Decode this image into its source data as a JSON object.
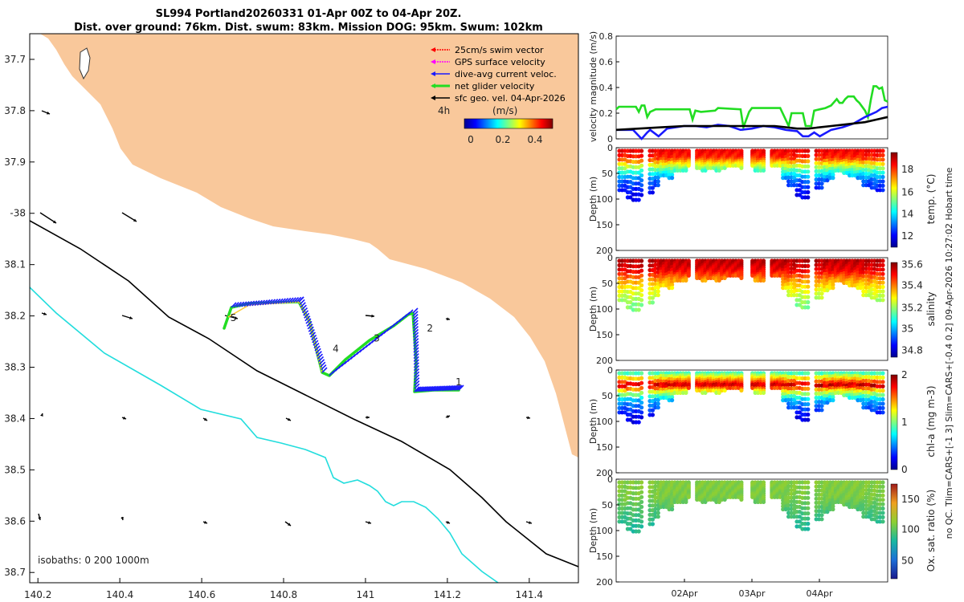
{
  "header": {
    "title_line1": "SL994 Portland20260331 01-Apr 00Z to 04-Apr 20Z.",
    "title_line2": "Dist. over ground: 76km. Dist. swum: 83km. Mission DOG: 95km. Swum: 102km"
  },
  "colors": {
    "land": "#f9c89b",
    "sea": "#ffffff",
    "isobath_200": "#000000",
    "isobath_1000": "#22dddd",
    "swim": "#ff0000",
    "gps": "#ff00ff",
    "current": "#1a1aff",
    "net": "#22dd22",
    "geo": "#000000"
  },
  "map": {
    "xlim": [
      140.18,
      141.52
    ],
    "ylim": [
      -38.72,
      -37.65
    ],
    "x_ticks": [
      {
        "v": 140.2,
        "label": "140.2"
      },
      {
        "v": 140.4,
        "label": "140.4"
      },
      {
        "v": 140.6,
        "label": "140.6"
      },
      {
        "v": 140.8,
        "label": "140.8"
      },
      {
        "v": 141.0,
        "label": "141"
      },
      {
        "v": 141.2,
        "label": "141.2"
      },
      {
        "v": 141.4,
        "label": "141.4"
      }
    ],
    "y_ticks": [
      {
        "v": -37.7,
        "label": "37.7"
      },
      {
        "v": -37.8,
        "label": "37.8"
      },
      {
        "v": -37.9,
        "label": "37.9"
      },
      {
        "v": -38.0,
        "label": "-38"
      },
      {
        "v": -38.1,
        "label": "38.1"
      },
      {
        "v": -38.2,
        "label": "38.2"
      },
      {
        "v": -38.3,
        "label": "38.3"
      },
      {
        "v": -38.4,
        "label": "38.4"
      },
      {
        "v": -38.5,
        "label": "38.5"
      },
      {
        "v": -38.6,
        "label": "38.6"
      },
      {
        "v": -38.7,
        "label": "38.7"
      }
    ],
    "isobath_label": "isobaths: 0   200  1000m",
    "legend": [
      {
        "label": "25cm/s swim vector",
        "color_key": "swim"
      },
      {
        "label": "GPS surface velocity",
        "color_key": "gps"
      },
      {
        "label": "dive-avg current veloc.",
        "color_key": "current"
      },
      {
        "label": "net glider velocity",
        "color_key": "net"
      },
      {
        "label": "sfc geo. vel. 04-Apr-2026",
        "color_key": "geo"
      }
    ],
    "scale_note": "4h",
    "colorbar_title": "(m/s)",
    "colorbar_ticks": [
      "0",
      "0.2",
      "0.4"
    ],
    "track_points": [
      {
        "label": "1",
        "lon": 141.22,
        "lat": -38.335
      },
      {
        "label": "2",
        "lon": 141.15,
        "lat": -38.23
      },
      {
        "label": "3",
        "lon": 141.02,
        "lat": -38.25
      },
      {
        "label": "4",
        "lon": 140.92,
        "lat": -38.27
      },
      {
        "label": "5",
        "lon": 140.67,
        "lat": -38.21
      }
    ]
  },
  "panels": {
    "x_ticks": [
      "02Apr",
      "03Apr",
      "04Apr"
    ],
    "velocity_ylabel": "velocity magnitude (m/s)",
    "velocity_ticks": [
      "0",
      "0.2",
      "0.4",
      "0.6",
      "0.8"
    ],
    "depth_ylabel": "Depth (m)",
    "depth_ticks": [
      "0",
      "50",
      "100",
      "150",
      "200"
    ],
    "temp_label": "temp. (°C)",
    "temp_ticks": [
      "12",
      "14",
      "16",
      "18"
    ],
    "sal_label": "salinity",
    "sal_ticks": [
      "34.8",
      "35",
      "35.2",
      "35.4",
      "35.6"
    ],
    "chl_label": "chl-a (mg m-3)",
    "chl_ticks": [
      "0",
      "1",
      "2"
    ],
    "ox_label": "Ox. sat. ratio (%)",
    "ox_ticks": [
      "50",
      "100",
      "150"
    ],
    "side_note_1": "no QC. Tlim=CARS+[-1 3] Slim=CARS+[-0.4 0.2] 09-Apr-2026 10:27:02 Hobart time"
  },
  "chart_data": [
    {
      "type": "line",
      "title": "velocity magnitude",
      "xlabel": "",
      "ylabel": "velocity magnitude (m/s)",
      "xlim": [
        0,
        4.8
      ],
      "ylim": [
        0,
        0.8
      ],
      "series": [
        {
          "name": "net glider velocity",
          "color_key": "net",
          "x": [
            0.0,
            0.05,
            0.35,
            0.4,
            0.45,
            0.5,
            0.55,
            0.6,
            0.7,
            1.3,
            1.35,
            1.4,
            1.5,
            1.75,
            1.8,
            2.2,
            2.25,
            2.35,
            2.4,
            2.5,
            2.9,
            3.05,
            3.1,
            3.3,
            3.35,
            3.45,
            3.5,
            3.6,
            3.7,
            3.8,
            3.9,
            3.95,
            4.0,
            4.05,
            4.1,
            4.2,
            4.25,
            4.3,
            4.4,
            4.45,
            4.5,
            4.55,
            4.6,
            4.65,
            4.7,
            4.75,
            4.8
          ],
          "y": [
            0.23,
            0.25,
            0.25,
            0.21,
            0.26,
            0.26,
            0.17,
            0.21,
            0.23,
            0.23,
            0.15,
            0.22,
            0.21,
            0.22,
            0.24,
            0.23,
            0.09,
            0.21,
            0.24,
            0.24,
            0.24,
            0.1,
            0.2,
            0.2,
            0.1,
            0.1,
            0.22,
            0.23,
            0.24,
            0.26,
            0.31,
            0.28,
            0.28,
            0.31,
            0.33,
            0.33,
            0.3,
            0.28,
            0.22,
            0.17,
            0.3,
            0.41,
            0.41,
            0.39,
            0.4,
            0.3,
            0.29
          ]
        },
        {
          "name": "dive-avg current veloc.",
          "color_key": "current",
          "x": [
            0.0,
            0.3,
            0.45,
            0.55,
            0.6,
            0.75,
            0.9,
            1.2,
            1.4,
            1.6,
            1.8,
            2.0,
            2.2,
            2.4,
            2.6,
            2.8,
            3.0,
            3.2,
            3.3,
            3.4,
            3.5,
            3.6,
            3.8,
            4.0,
            4.2,
            4.4,
            4.6,
            4.7,
            4.8
          ],
          "y": [
            0.07,
            0.07,
            0.0,
            0.05,
            0.07,
            0.02,
            0.08,
            0.1,
            0.1,
            0.09,
            0.11,
            0.1,
            0.07,
            0.08,
            0.1,
            0.09,
            0.07,
            0.06,
            0.02,
            0.02,
            0.05,
            0.02,
            0.07,
            0.09,
            0.12,
            0.17,
            0.21,
            0.24,
            0.25
          ]
        },
        {
          "name": "sfc geo. vel.",
          "color_key": "geo",
          "x": [
            0.0,
            0.4,
            0.8,
            1.2,
            1.6,
            2.0,
            2.4,
            2.8,
            3.0,
            3.2,
            3.4,
            3.6,
            3.8,
            4.0,
            4.2,
            4.4,
            4.6,
            4.8
          ],
          "y": [
            0.07,
            0.08,
            0.09,
            0.1,
            0.1,
            0.1,
            0.1,
            0.1,
            0.09,
            0.08,
            0.08,
            0.09,
            0.1,
            0.11,
            0.12,
            0.13,
            0.15,
            0.17
          ]
        }
      ]
    },
    {
      "type": "heatmap",
      "title": "temperature section",
      "ylabel": "Depth (m)",
      "colorbar_label": "temp. (°C)",
      "clim": [
        11,
        20
      ],
      "ylim": [
        200,
        0
      ],
      "dive_max_depth_m": [
        80,
        95,
        100,
        90,
        85,
        70,
        50,
        55,
        40,
        40,
        30,
        35,
        40,
        35,
        40,
        35,
        30,
        30,
        35,
        30,
        40,
        40,
        30,
        30,
        55,
        70,
        90,
        95,
        90,
        75,
        60,
        55,
        40,
        45,
        50,
        55,
        70,
        75,
        80
      ],
      "profile": [
        [
          0,
          19
        ],
        [
          15,
          18.5
        ],
        [
          25,
          17
        ],
        [
          40,
          15
        ],
        [
          60,
          13
        ],
        [
          90,
          12
        ]
      ]
    },
    {
      "type": "heatmap",
      "title": "salinity section",
      "ylabel": "Depth (m)",
      "colorbar_label": "salinity",
      "clim": [
        34.7,
        35.6
      ],
      "profile": [
        [
          0,
          35.55
        ],
        [
          20,
          35.5
        ],
        [
          40,
          35.35
        ],
        [
          60,
          35.25
        ],
        [
          90,
          35.15
        ]
      ]
    },
    {
      "type": "heatmap",
      "title": "chlorophyll section",
      "ylabel": "Depth (m)",
      "colorbar_label": "chl-a (mg m-3)",
      "clim": [
        0,
        2
      ],
      "profile": [
        [
          0,
          0.9
        ],
        [
          15,
          1.5
        ],
        [
          25,
          1.9
        ],
        [
          35,
          1.3
        ],
        [
          55,
          0.6
        ],
        [
          90,
          0.2
        ]
      ]
    },
    {
      "type": "heatmap",
      "title": "oxygen saturation section",
      "ylabel": "Depth (m)",
      "colorbar_label": "Ox. sat. ratio (%)",
      "clim": [
        20,
        175
      ],
      "profile": [
        [
          0,
          110
        ],
        [
          30,
          108
        ],
        [
          60,
          95
        ],
        [
          90,
          85
        ]
      ]
    }
  ]
}
